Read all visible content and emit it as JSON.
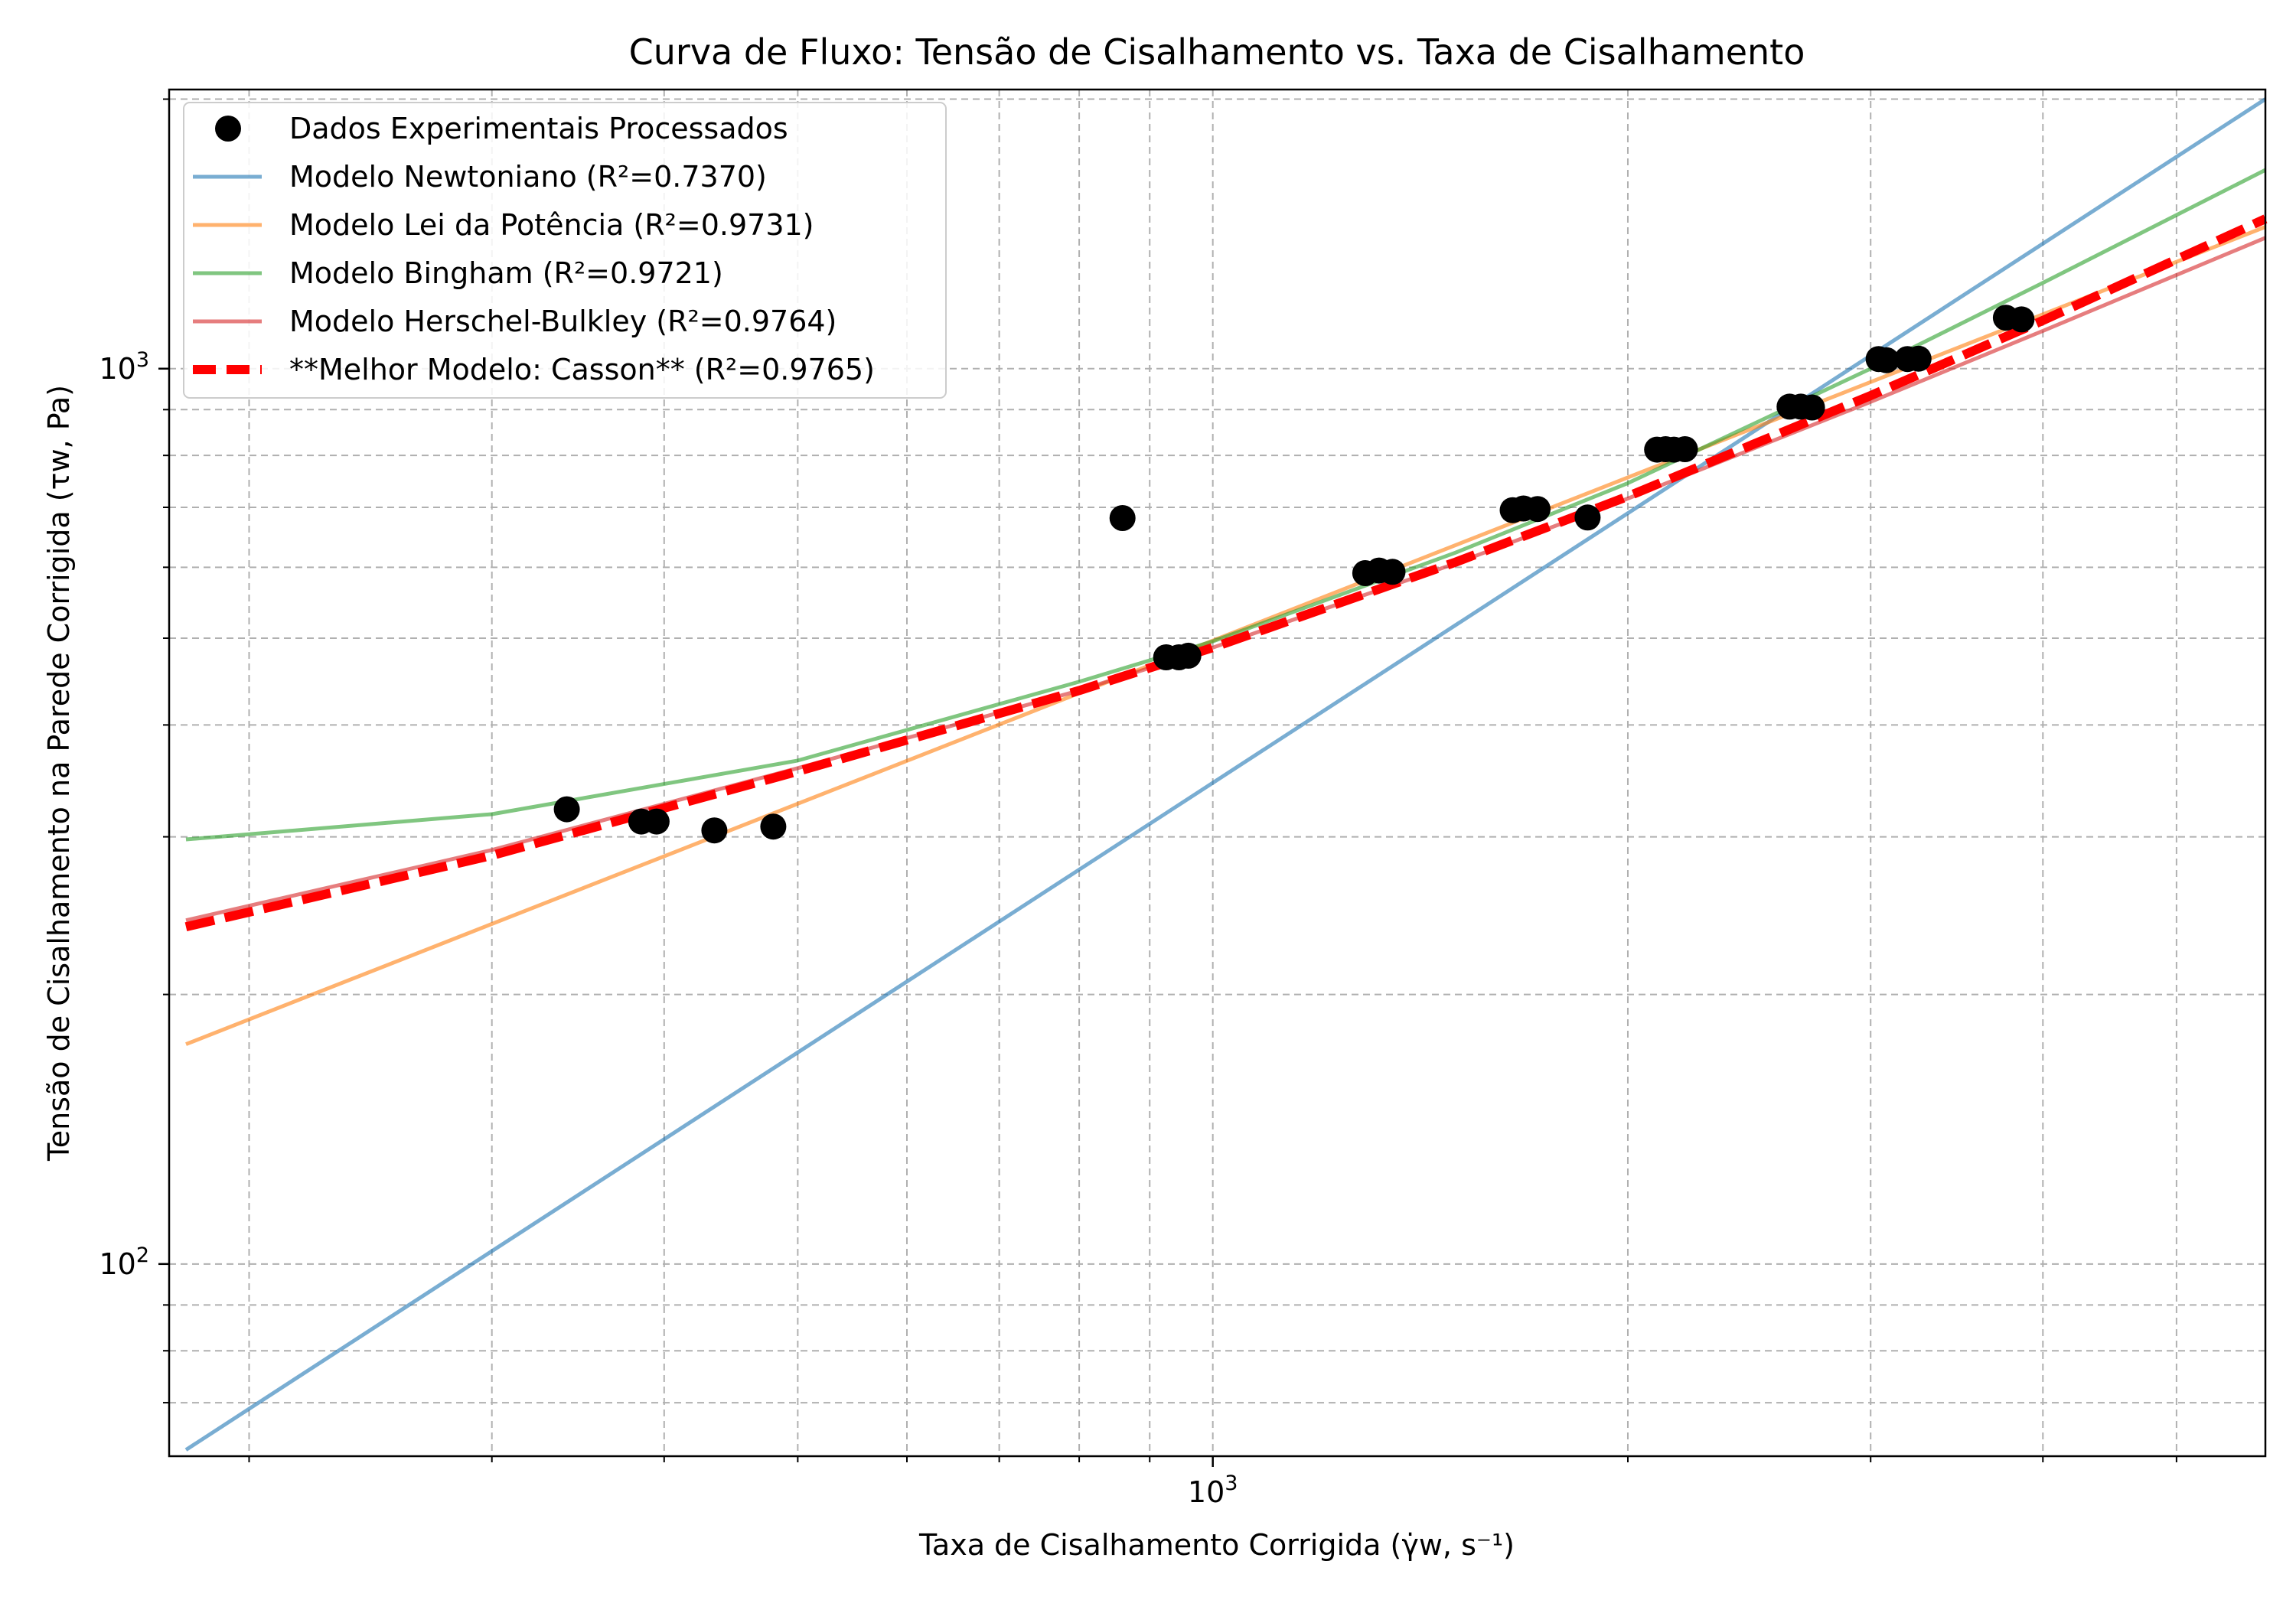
{
  "chart_data": {
    "type": "line",
    "title": "Curva de Fluxo: Tensão de Cisalhamento vs. Taxa de Cisalhamento",
    "xlabel": "Taxa de Cisalhamento Corrigida (γ̇w, s⁻¹)",
    "ylabel": "Tensão de Cisalhamento na Parede Corrigida (τw, Pa)",
    "xscale": "log",
    "yscale": "log",
    "xlim": [
      175,
      5800
    ],
    "ylim": [
      61,
      2050
    ],
    "grid": true,
    "grid_minor": true,
    "legend_position": "top-left",
    "x_tick_labels": [
      {
        "base": "10",
        "exp": "3",
        "value": 1000
      }
    ],
    "y_tick_labels": [
      {
        "base": "10",
        "exp": "2",
        "value": 100
      },
      {
        "base": "10",
        "exp": "3",
        "value": 1000
      }
    ],
    "scatter": {
      "name": "Dados Experimentais Processados",
      "color": "#000000",
      "x": [
        340,
        385,
        395,
        435,
        480,
        860,
        925,
        945,
        960,
        1290,
        1320,
        1350,
        1650,
        1680,
        1720,
        1870,
        2100,
        2130,
        2160,
        2200,
        2620,
        2670,
        2720,
        3040,
        3080,
        3190,
        3250,
        3760,
        3860
      ],
      "y": [
        322,
        312,
        312,
        305,
        308,
        681,
        476,
        476,
        478,
        591,
        595,
        593,
        695,
        698,
        697,
        682,
        812,
        813,
        812,
        813,
        907,
        907,
        905,
        1025,
        1022,
        1025,
        1026,
        1140,
        1135
      ]
    },
    "series": [
      {
        "name": "Modelo Newtoniano",
        "r2_label": "(R²=0.7370)",
        "color": "#1f77b4",
        "opacity": 0.6,
        "width": 5,
        "dash": "",
        "x": [
          180,
          5800
        ],
        "y": [
          62,
          2000
        ]
      },
      {
        "name": "Modelo Lei da Potência",
        "r2_label": "(R²=0.9731)",
        "color": "#ff7f0e",
        "opacity": 0.6,
        "width": 5,
        "dash": "",
        "x": [
          180,
          5800
        ],
        "y": [
          176,
          1440
        ]
      },
      {
        "name": "Modelo Bingham",
        "r2_label": "(R²=0.9721)",
        "color": "#2ca02c",
        "opacity": 0.6,
        "width": 5,
        "dash": "",
        "x": [
          180,
          300,
          500,
          800,
          1000,
          1500,
          2000,
          3000,
          4000,
          5800
        ],
        "y": [
          298,
          318,
          365,
          447,
          496,
          623,
          745,
          1000,
          1247,
          1667
        ]
      },
      {
        "name": "Modelo Herschel-Bulkley",
        "r2_label": "(R²=0.9764)",
        "color": "#d62728",
        "opacity": 0.6,
        "width": 5,
        "dash": "",
        "x": [
          180,
          300,
          500,
          800,
          1000,
          1500,
          2000,
          3000,
          4000,
          5800
        ],
        "y": [
          242,
          290,
          358,
          437,
          488,
          606,
          716,
          918,
          1102,
          1400
        ]
      },
      {
        "name": "**Melhor Modelo: Casson**",
        "r2_label": "(R²=0.9765)",
        "color": "#ff0000",
        "opacity": 1,
        "width": 12,
        "dash": "38,14",
        "x": [
          180,
          300,
          500,
          800,
          1000,
          1500,
          2000,
          3000,
          4000,
          5800
        ],
        "y": [
          238,
          286,
          355,
          437,
          488,
          608,
          720,
          933,
          1132,
          1470
        ]
      }
    ]
  }
}
